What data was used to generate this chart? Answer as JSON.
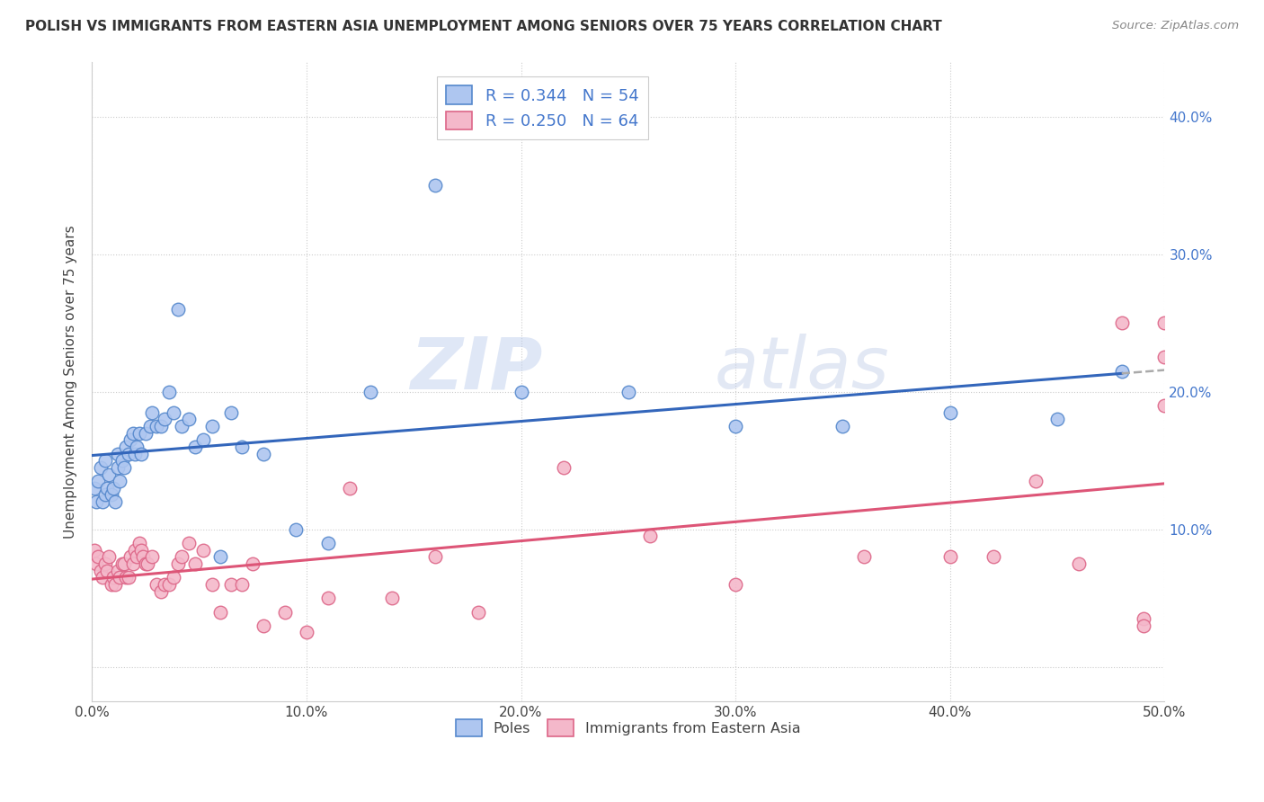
{
  "title": "POLISH VS IMMIGRANTS FROM EASTERN ASIA UNEMPLOYMENT AMONG SENIORS OVER 75 YEARS CORRELATION CHART",
  "source": "Source: ZipAtlas.com",
  "ylabel": "Unemployment Among Seniors over 75 years",
  "xlim": [
    0.0,
    0.5
  ],
  "ylim": [
    -0.025,
    0.44
  ],
  "xticks": [
    0.0,
    0.1,
    0.2,
    0.3,
    0.4,
    0.5
  ],
  "yticks": [
    0.0,
    0.1,
    0.2,
    0.3,
    0.4
  ],
  "xtick_labels": [
    "0.0%",
    "10.0%",
    "20.0%",
    "30.0%",
    "40.0%",
    "50.0%"
  ],
  "ytick_labels_right": [
    "",
    "10.0%",
    "20.0%",
    "30.0%",
    "40.0%"
  ],
  "poles_color": "#aec6f0",
  "immigrants_color": "#f4b8ca",
  "poles_edge_color": "#5588cc",
  "immigrants_edge_color": "#dd6688",
  "poles_line_color": "#3366bb",
  "immigrants_line_color": "#dd5577",
  "R_poles": 0.344,
  "N_poles": 54,
  "R_immigrants": 0.25,
  "N_immigrants": 64,
  "legend_label_poles": "Poles",
  "legend_label_immigrants": "Immigrants from Eastern Asia",
  "watermark_zip": "ZIP",
  "watermark_atlas": "atlas",
  "poles_x": [
    0.001,
    0.002,
    0.003,
    0.004,
    0.005,
    0.006,
    0.006,
    0.007,
    0.008,
    0.009,
    0.01,
    0.011,
    0.012,
    0.012,
    0.013,
    0.014,
    0.015,
    0.016,
    0.017,
    0.018,
    0.019,
    0.02,
    0.021,
    0.022,
    0.023,
    0.025,
    0.027,
    0.028,
    0.03,
    0.032,
    0.034,
    0.036,
    0.038,
    0.04,
    0.042,
    0.045,
    0.048,
    0.052,
    0.056,
    0.06,
    0.065,
    0.07,
    0.08,
    0.095,
    0.11,
    0.13,
    0.16,
    0.2,
    0.25,
    0.3,
    0.35,
    0.4,
    0.45,
    0.48
  ],
  "poles_y": [
    0.13,
    0.12,
    0.135,
    0.145,
    0.12,
    0.125,
    0.15,
    0.13,
    0.14,
    0.125,
    0.13,
    0.12,
    0.145,
    0.155,
    0.135,
    0.15,
    0.145,
    0.16,
    0.155,
    0.165,
    0.17,
    0.155,
    0.16,
    0.17,
    0.155,
    0.17,
    0.175,
    0.185,
    0.175,
    0.175,
    0.18,
    0.2,
    0.185,
    0.26,
    0.175,
    0.18,
    0.16,
    0.165,
    0.175,
    0.08,
    0.185,
    0.16,
    0.155,
    0.1,
    0.09,
    0.2,
    0.35,
    0.2,
    0.2,
    0.175,
    0.175,
    0.185,
    0.18,
    0.215
  ],
  "immigrants_x": [
    0.001,
    0.002,
    0.003,
    0.004,
    0.005,
    0.006,
    0.007,
    0.008,
    0.009,
    0.01,
    0.011,
    0.012,
    0.013,
    0.014,
    0.015,
    0.016,
    0.017,
    0.018,
    0.019,
    0.02,
    0.021,
    0.022,
    0.023,
    0.024,
    0.025,
    0.026,
    0.028,
    0.03,
    0.032,
    0.034,
    0.036,
    0.038,
    0.04,
    0.042,
    0.045,
    0.048,
    0.052,
    0.056,
    0.06,
    0.065,
    0.07,
    0.075,
    0.08,
    0.09,
    0.1,
    0.11,
    0.12,
    0.14,
    0.16,
    0.18,
    0.22,
    0.26,
    0.3,
    0.36,
    0.4,
    0.42,
    0.44,
    0.46,
    0.48,
    0.49,
    0.49,
    0.5,
    0.5,
    0.5
  ],
  "immigrants_y": [
    0.085,
    0.075,
    0.08,
    0.07,
    0.065,
    0.075,
    0.07,
    0.08,
    0.06,
    0.065,
    0.06,
    0.07,
    0.065,
    0.075,
    0.075,
    0.065,
    0.065,
    0.08,
    0.075,
    0.085,
    0.08,
    0.09,
    0.085,
    0.08,
    0.075,
    0.075,
    0.08,
    0.06,
    0.055,
    0.06,
    0.06,
    0.065,
    0.075,
    0.08,
    0.09,
    0.075,
    0.085,
    0.06,
    0.04,
    0.06,
    0.06,
    0.075,
    0.03,
    0.04,
    0.025,
    0.05,
    0.13,
    0.05,
    0.08,
    0.04,
    0.145,
    0.095,
    0.06,
    0.08,
    0.08,
    0.08,
    0.135,
    0.075,
    0.25,
    0.035,
    0.03,
    0.19,
    0.25,
    0.225
  ]
}
